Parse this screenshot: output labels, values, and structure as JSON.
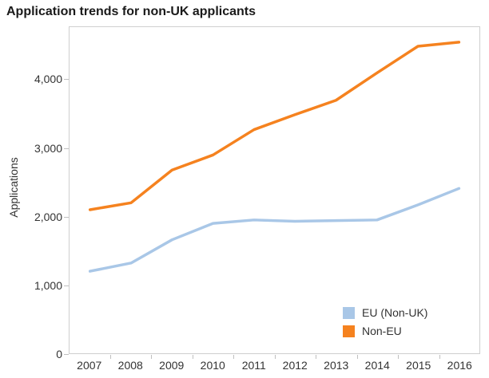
{
  "title": "Application trends for non-UK applicants",
  "colors": {
    "eu_non_uk_line": "#A9C7E7",
    "non_eu_line": "#F5821F",
    "plot_border": "#CFCFCF",
    "tick_mark": "#C0C0C0",
    "axis_text": "#333333",
    "title_text": "#1A1A1A",
    "background": "#FFFFFF"
  },
  "chart_data": {
    "type": "line",
    "title": "Application trends for non-UK applicants",
    "xlabel": "",
    "ylabel": "Applications",
    "categories": [
      "2007",
      "2008",
      "2009",
      "2010",
      "2011",
      "2012",
      "2013",
      "2014",
      "2015",
      "2016"
    ],
    "series": [
      {
        "name": "EU (Non-UK)",
        "color": "#A9C7E7",
        "values": [
          1200,
          1320,
          1660,
          1900,
          1950,
          1930,
          1940,
          1950,
          2170,
          2410
        ]
      },
      {
        "name": "Non-EU",
        "color": "#F5821F",
        "values": [
          2100,
          2200,
          2680,
          2900,
          3270,
          3490,
          3700,
          4100,
          4490,
          4550
        ]
      }
    ],
    "y_ticks": [
      0,
      1000,
      2000,
      3000,
      4000
    ],
    "y_tick_labels": [
      "0",
      "1,000",
      "2,000",
      "3,000",
      "4,000"
    ],
    "ylim": [
      0,
      4770
    ],
    "grid": false,
    "legend_position": "bottom-right",
    "legend_entries": [
      "EU (Non-UK)",
      "Non-EU"
    ]
  }
}
